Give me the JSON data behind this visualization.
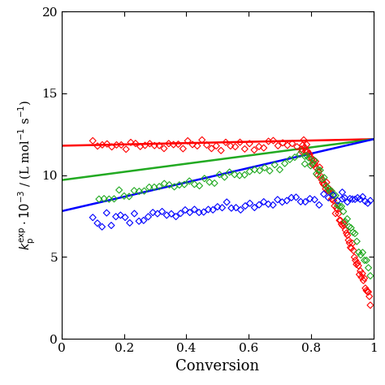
{
  "title": "",
  "xlabel": "Conversion",
  "xlim": [
    0,
    1.0
  ],
  "ylim": [
    0,
    20
  ],
  "yticks": [
    0,
    5,
    10,
    15,
    20
  ],
  "xticks": [
    0,
    0.2,
    0.4,
    0.6,
    0.8,
    1.0
  ],
  "xtick_labels": [
    "0",
    "0.2",
    "0.4",
    "0.6",
    "0.8",
    "1"
  ],
  "ytick_labels": [
    "0",
    "5",
    "10",
    "15",
    "20"
  ],
  "colors": {
    "red": "#ff0000",
    "green": "#22aa22",
    "blue": "#0000ff"
  },
  "red_line_y0": 11.8,
  "red_line_y1": 12.2,
  "green_line_y0": 9.7,
  "green_line_y1": 12.2,
  "blue_line_y0": 7.8,
  "blue_line_y1": 12.2,
  "background_color": "#ffffff"
}
